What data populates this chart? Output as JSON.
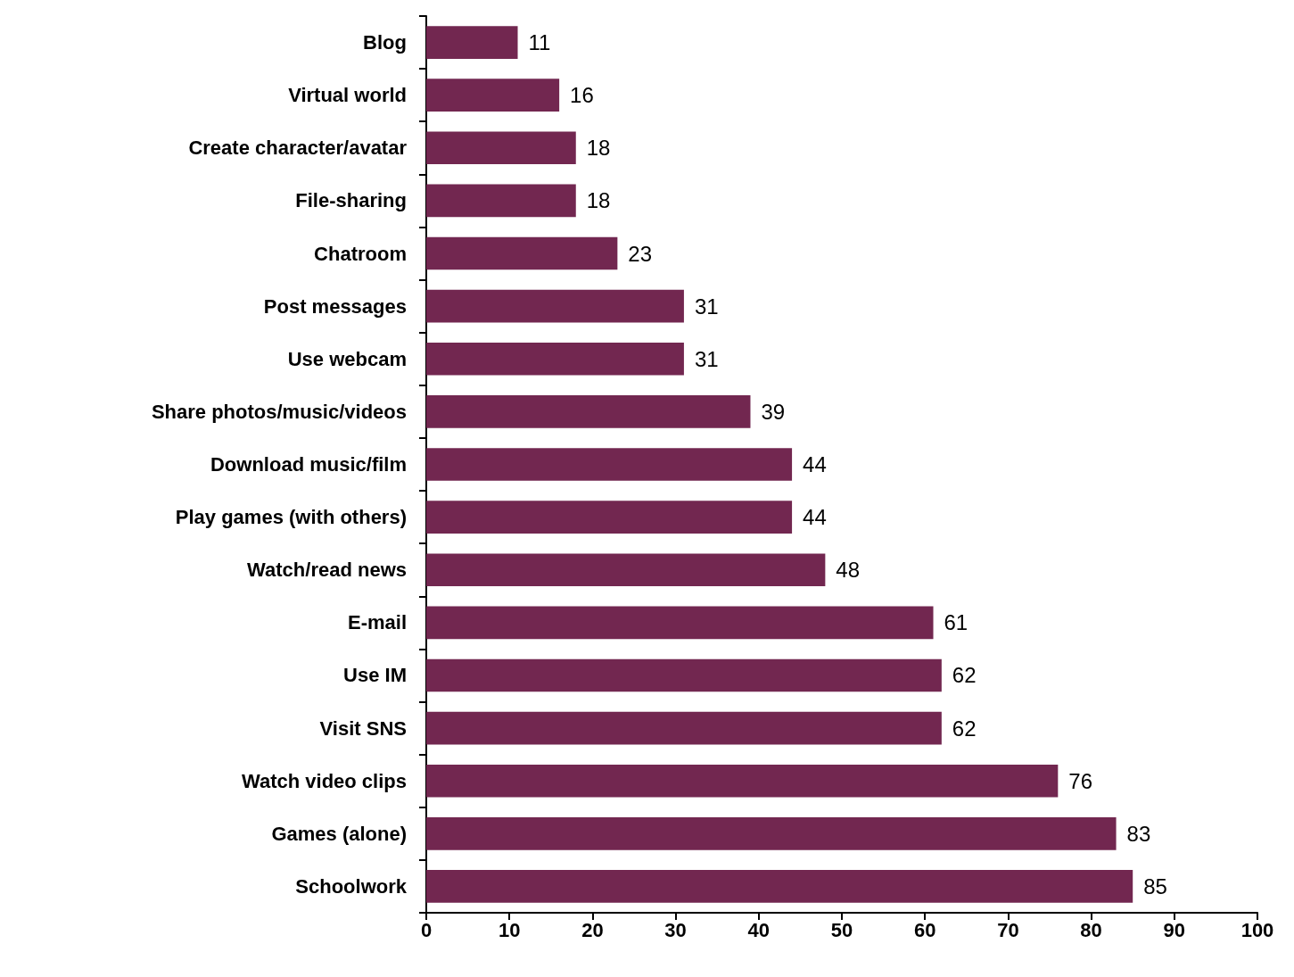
{
  "chart_data": {
    "type": "bar",
    "orientation": "horizontal",
    "categories": [
      "Blog",
      "Virtual world",
      "Create character/avatar",
      "File-sharing",
      "Chatroom",
      "Post messages",
      "Use webcam",
      "Share photos/music/videos",
      "Download music/film",
      "Play games (with others)",
      "Watch/read news",
      "E-mail",
      "Use IM",
      "Visit SNS",
      "Watch video clips",
      "Games (alone)",
      "Schoolwork"
    ],
    "values": [
      11,
      16,
      18,
      18,
      23,
      31,
      31,
      39,
      44,
      44,
      48,
      61,
      62,
      62,
      76,
      83,
      85
    ],
    "color": "#722750",
    "xlim": [
      0,
      100
    ],
    "xticks": [
      0,
      10,
      20,
      30,
      40,
      50,
      60,
      70,
      80,
      90,
      100
    ],
    "data_labels": true
  }
}
